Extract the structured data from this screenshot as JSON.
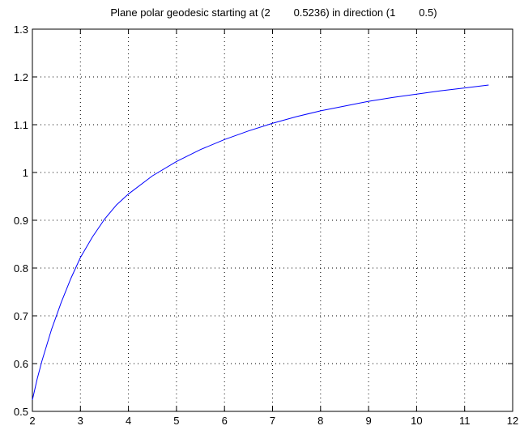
{
  "chart_data": {
    "type": "line",
    "title": "Plane polar geodesic starting at (2        0.5236) in direction (1        0.5)",
    "xlabel": "",
    "ylabel": "",
    "xlim": [
      2,
      12
    ],
    "ylim": [
      0.5,
      1.3
    ],
    "x_ticks": [
      2,
      3,
      4,
      5,
      6,
      7,
      8,
      9,
      10,
      11,
      12
    ],
    "y_ticks": [
      0.5,
      0.6,
      0.7,
      0.8,
      0.9,
      1,
      1.1,
      1.2,
      1.3
    ],
    "x_tick_labels": [
      "2",
      "3",
      "4",
      "5",
      "6",
      "7",
      "8",
      "9",
      "10",
      "11",
      "12"
    ],
    "y_tick_labels": [
      "0.5",
      "0.6",
      "0.7",
      "0.8",
      "0.9",
      "1",
      "1.1",
      "1.2",
      "1.3"
    ],
    "grid": true,
    "colors": {
      "line": "#0000ff",
      "axes": "#000000",
      "grid": "#000000"
    },
    "series": [
      {
        "x": [
          2.0,
          2.1,
          2.2,
          2.4,
          2.6,
          2.8,
          3.0,
          3.25,
          3.5,
          3.75,
          4.0,
          4.5,
          5.0,
          5.5,
          6.0,
          6.5,
          7.0,
          7.5,
          8.0,
          8.5,
          9.0,
          9.5,
          10.0,
          10.5,
          11.0,
          11.5
        ],
        "y": [
          0.524,
          0.568,
          0.606,
          0.672,
          0.728,
          0.778,
          0.822,
          0.865,
          0.902,
          0.932,
          0.955,
          0.993,
          1.023,
          1.048,
          1.069,
          1.087,
          1.103,
          1.117,
          1.129,
          1.139,
          1.149,
          1.157,
          1.164,
          1.171,
          1.177,
          1.183
        ]
      }
    ]
  }
}
